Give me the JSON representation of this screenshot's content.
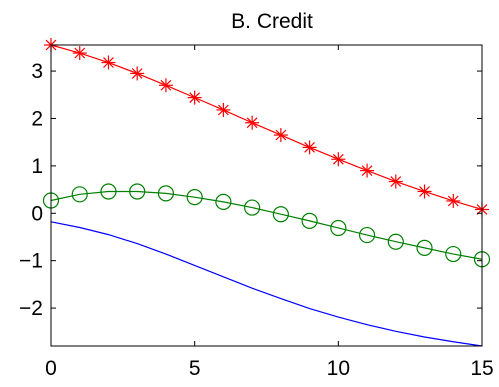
{
  "chart_data": {
    "type": "line",
    "title": "B. Credit",
    "xlabel": "",
    "ylabel": "",
    "xlim": [
      0,
      15
    ],
    "ylim": [
      -2.8,
      3.55
    ],
    "grid": false,
    "legend": "none",
    "x_ticks": [
      0,
      5,
      10,
      15
    ],
    "x_tick_labels": [
      "0",
      "5",
      "10",
      "15"
    ],
    "y_ticks": [
      -2,
      -1,
      0,
      1,
      2,
      3
    ],
    "y_tick_labels": [
      "−2",
      "−1",
      "0",
      "1",
      "2",
      "3"
    ],
    "x": [
      0,
      1,
      2,
      3,
      4,
      5,
      6,
      7,
      8,
      9,
      10,
      11,
      12,
      13,
      14,
      15
    ],
    "series": [
      {
        "color": "#ff0000",
        "marker": "asterisk",
        "values": [
          3.55,
          3.38,
          3.18,
          2.95,
          2.7,
          2.44,
          2.18,
          1.91,
          1.65,
          1.39,
          1.14,
          0.9,
          0.67,
          0.46,
          0.26,
          0.08
        ]
      },
      {
        "color": "#008000",
        "marker": "circle",
        "values": [
          0.27,
          0.4,
          0.46,
          0.46,
          0.42,
          0.34,
          0.24,
          0.12,
          -0.02,
          -0.16,
          -0.31,
          -0.46,
          -0.6,
          -0.73,
          -0.86,
          -0.97
        ]
      },
      {
        "color": "#0000ff",
        "marker": "none",
        "values": [
          -0.18,
          -0.3,
          -0.45,
          -0.64,
          -0.86,
          -1.1,
          -1.34,
          -1.58,
          -1.8,
          -2.01,
          -2.19,
          -2.35,
          -2.49,
          -2.61,
          -2.71,
          -2.8
        ]
      }
    ]
  }
}
